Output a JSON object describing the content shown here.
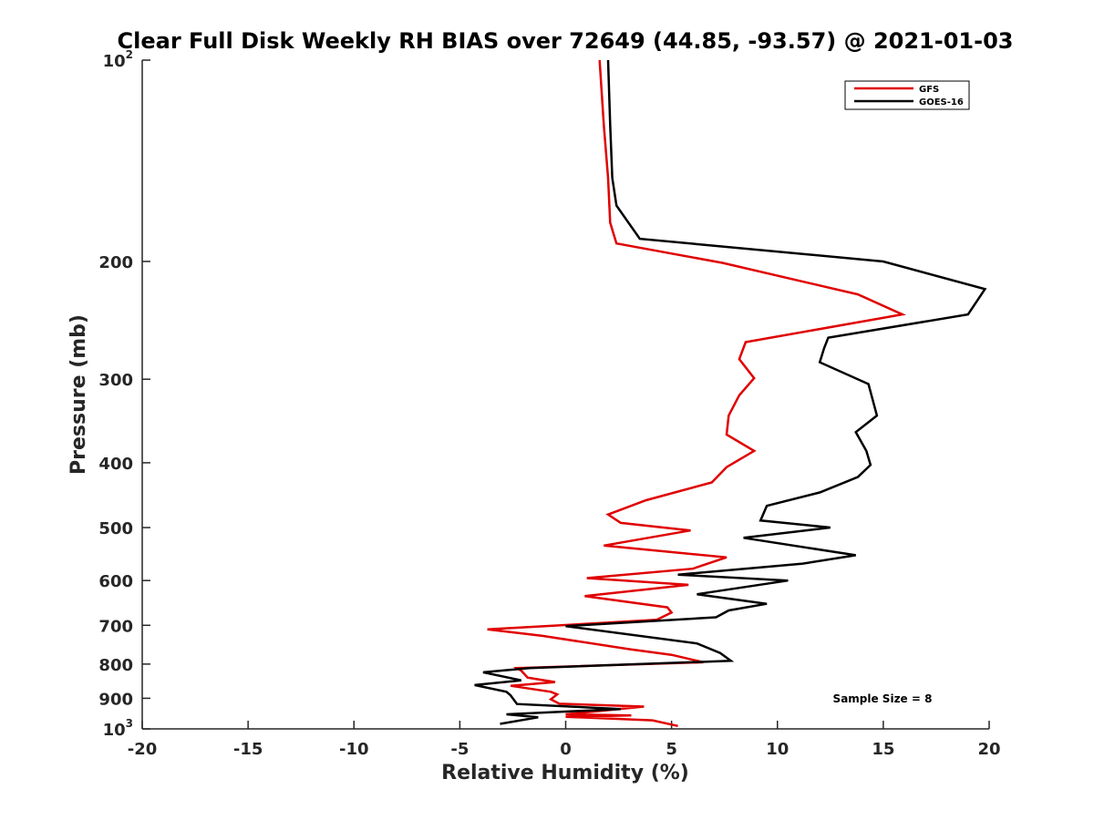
{
  "chart_data": {
    "type": "line",
    "title": "Clear Full Disk Weekly RH BIAS over 72649 (44.85, -93.57) @ 2021-01-03",
    "xlabel": "Relative Humidity (%)",
    "ylabel": "Pressure (mb)",
    "xlim": [
      -20,
      20
    ],
    "ylim": [
      100,
      1000
    ],
    "y_scale": "log",
    "y_reversed": true,
    "x_ticks": [
      "-20",
      "-15",
      "-10",
      "-5",
      "0",
      "5",
      "10",
      "15",
      "20"
    ],
    "y_ticks": [
      {
        "value": 100,
        "base": "10",
        "exp": "2"
      },
      {
        "value": 200,
        "label": "200"
      },
      {
        "value": 300,
        "label": "300"
      },
      {
        "value": 400,
        "label": "400"
      },
      {
        "value": 500,
        "label": "500"
      },
      {
        "value": 600,
        "label": "600"
      },
      {
        "value": 700,
        "label": "700"
      },
      {
        "value": 800,
        "label": "800"
      },
      {
        "value": 900,
        "label": "900"
      },
      {
        "value": 1000,
        "base": "10",
        "exp": "3"
      }
    ],
    "grid": false,
    "legend_position": "top-right",
    "annotation": "Sample Size = 8",
    "series": [
      {
        "name": "GFS",
        "color": "#e00000",
        "points": [
          [
            1.6,
            100
          ],
          [
            1.8,
            125
          ],
          [
            2.0,
            150
          ],
          [
            2.1,
            175
          ],
          [
            2.4,
            188
          ],
          [
            7.4,
            201
          ],
          [
            13.8,
            224
          ],
          [
            15.9,
            240
          ],
          [
            8.5,
            264
          ],
          [
            8.2,
            280
          ],
          [
            8.9,
            299
          ],
          [
            8.2,
            317
          ],
          [
            7.7,
            340
          ],
          [
            7.6,
            363
          ],
          [
            8.9,
            384
          ],
          [
            7.6,
            406
          ],
          [
            6.9,
            428
          ],
          [
            3.8,
            455
          ],
          [
            2.0,
            478
          ],
          [
            2.6,
            492
          ],
          [
            5.9,
            505
          ],
          [
            1.8,
            532
          ],
          [
            7.6,
            554
          ],
          [
            6.0,
            576
          ],
          [
            1.0,
            595
          ],
          [
            5.8,
            609
          ],
          [
            0.9,
            633
          ],
          [
            4.8,
            658
          ],
          [
            5.0,
            670
          ],
          [
            4.3,
            687
          ],
          [
            -3.7,
            710
          ],
          [
            -1.1,
            726
          ],
          [
            3.0,
            760
          ],
          [
            5.0,
            775
          ],
          [
            6.5,
            795
          ],
          [
            -2.3,
            811
          ],
          [
            -2.1,
            818
          ],
          [
            -1.8,
            838
          ],
          [
            -0.5,
            851
          ],
          [
            -2.6,
            862
          ],
          [
            -0.7,
            880
          ],
          [
            -0.4,
            888
          ],
          [
            -0.7,
            903
          ],
          [
            -0.3,
            917
          ],
          [
            3.7,
            926
          ],
          [
            0.0,
            951
          ],
          [
            3.1,
            955
          ],
          [
            0.0,
            959
          ],
          [
            4.1,
            971
          ],
          [
            5.3,
            990
          ]
        ]
      },
      {
        "name": "GOES-16",
        "color": "#000000",
        "points": [
          [
            2.0,
            100
          ],
          [
            2.1,
            125
          ],
          [
            2.2,
            150
          ],
          [
            2.4,
            165
          ],
          [
            3.5,
            185
          ],
          [
            15.0,
            200
          ],
          [
            19.8,
            220
          ],
          [
            19.0,
            240
          ],
          [
            12.4,
            260
          ],
          [
            12.2,
            270
          ],
          [
            12.0,
            283
          ],
          [
            14.3,
            305
          ],
          [
            14.7,
            340
          ],
          [
            13.7,
            360
          ],
          [
            14.2,
            384
          ],
          [
            14.4,
            403
          ],
          [
            13.8,
            420
          ],
          [
            12.0,
            443
          ],
          [
            9.5,
            464
          ],
          [
            9.2,
            488
          ],
          [
            12.5,
            500
          ],
          [
            8.4,
            518
          ],
          [
            13.7,
            550
          ],
          [
            11.2,
            566
          ],
          [
            5.3,
            588
          ],
          [
            10.5,
            600
          ],
          [
            6.2,
            629
          ],
          [
            9.5,
            650
          ],
          [
            7.7,
            665
          ],
          [
            7.1,
            681
          ],
          [
            0.0,
            702
          ],
          [
            6.2,
            745
          ],
          [
            7.3,
            770
          ],
          [
            7.8,
            791
          ],
          [
            -1.7,
            811
          ],
          [
            -3.9,
            823
          ],
          [
            -2.1,
            846
          ],
          [
            -4.3,
            860
          ],
          [
            -2.8,
            880
          ],
          [
            -2.6,
            891
          ],
          [
            -2.3,
            918
          ],
          [
            2.6,
            934
          ],
          [
            -2.8,
            951
          ],
          [
            -1.3,
            961
          ],
          [
            -3.1,
            983
          ]
        ]
      }
    ]
  }
}
